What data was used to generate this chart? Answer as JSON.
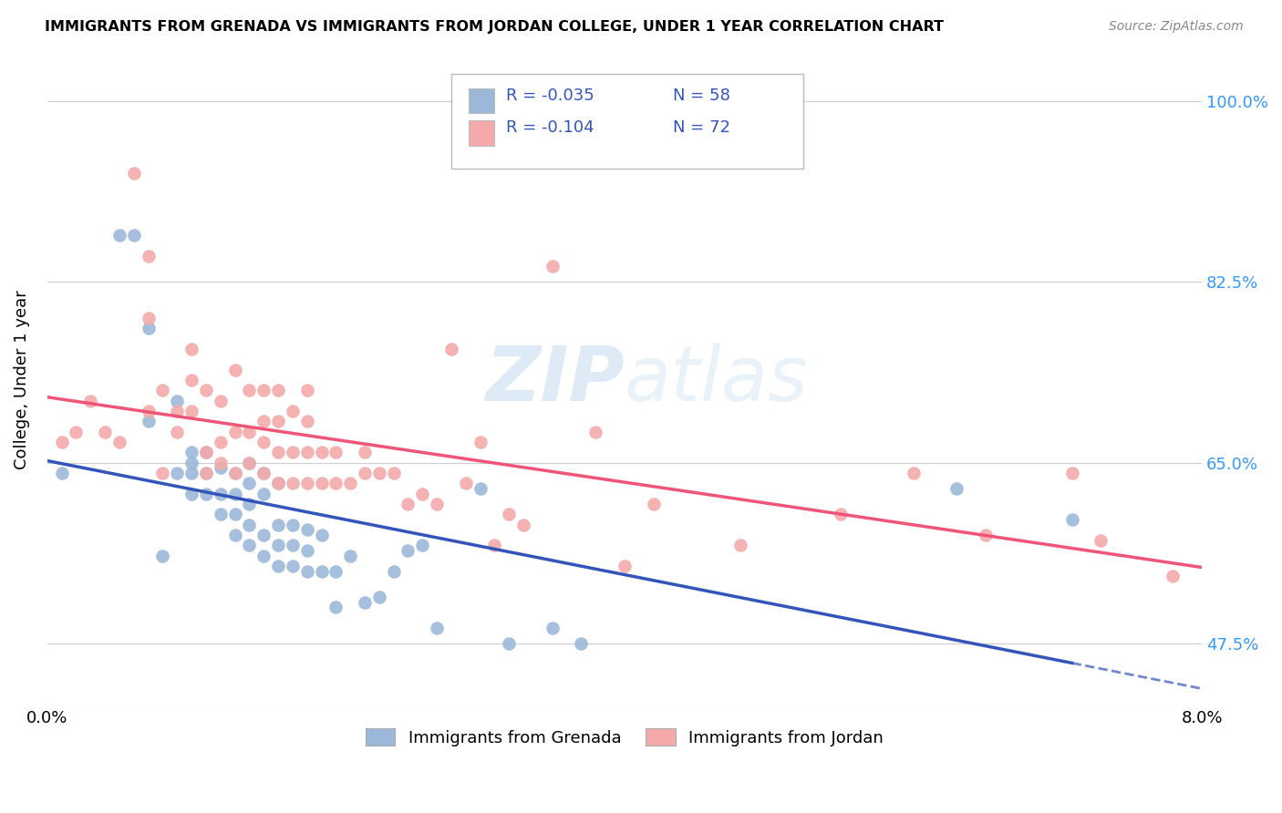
{
  "title": "IMMIGRANTS FROM GRENADA VS IMMIGRANTS FROM JORDAN COLLEGE, UNDER 1 YEAR CORRELATION CHART",
  "source": "Source: ZipAtlas.com",
  "ylabel": "College, Under 1 year",
  "yticks": [
    0.475,
    0.65,
    0.825,
    1.0
  ],
  "ytick_labels": [
    "47.5%",
    "65.0%",
    "82.5%",
    "100.0%"
  ],
  "xmin": 0.0,
  "xmax": 0.08,
  "ymin": 0.415,
  "ymax": 1.045,
  "legend_r1": "R = -0.035",
  "legend_n1": "N = 58",
  "legend_r2": "R = -0.104",
  "legend_n2": "N = 72",
  "color_grenada": "#9BB8D9",
  "color_jordan": "#F4AAAA",
  "color_trendline_grenada": "#3355BB",
  "color_trendline_jordan": "#EE5577",
  "watermark_color": "#C8DFF0",
  "grenada_x": [
    0.001,
    0.005,
    0.006,
    0.007,
    0.007,
    0.008,
    0.009,
    0.009,
    0.01,
    0.01,
    0.01,
    0.01,
    0.011,
    0.011,
    0.011,
    0.012,
    0.012,
    0.012,
    0.013,
    0.013,
    0.013,
    0.013,
    0.014,
    0.014,
    0.014,
    0.014,
    0.014,
    0.015,
    0.015,
    0.015,
    0.015,
    0.016,
    0.016,
    0.016,
    0.016,
    0.017,
    0.017,
    0.017,
    0.018,
    0.018,
    0.018,
    0.019,
    0.019,
    0.02,
    0.02,
    0.021,
    0.022,
    0.023,
    0.024,
    0.025,
    0.026,
    0.027,
    0.03,
    0.032,
    0.035,
    0.037,
    0.063,
    0.071
  ],
  "grenada_y": [
    0.64,
    0.87,
    0.87,
    0.78,
    0.69,
    0.56,
    0.64,
    0.71,
    0.62,
    0.64,
    0.65,
    0.66,
    0.62,
    0.64,
    0.66,
    0.6,
    0.62,
    0.645,
    0.58,
    0.6,
    0.62,
    0.64,
    0.57,
    0.59,
    0.61,
    0.63,
    0.65,
    0.56,
    0.58,
    0.62,
    0.64,
    0.55,
    0.57,
    0.59,
    0.63,
    0.55,
    0.57,
    0.59,
    0.545,
    0.565,
    0.585,
    0.545,
    0.58,
    0.51,
    0.545,
    0.56,
    0.515,
    0.52,
    0.545,
    0.565,
    0.57,
    0.49,
    0.625,
    0.475,
    0.49,
    0.475,
    0.625,
    0.595
  ],
  "jordan_x": [
    0.001,
    0.002,
    0.003,
    0.004,
    0.005,
    0.006,
    0.007,
    0.007,
    0.007,
    0.008,
    0.008,
    0.009,
    0.009,
    0.01,
    0.01,
    0.01,
    0.011,
    0.011,
    0.011,
    0.012,
    0.012,
    0.012,
    0.013,
    0.013,
    0.013,
    0.014,
    0.014,
    0.014,
    0.015,
    0.015,
    0.015,
    0.015,
    0.016,
    0.016,
    0.016,
    0.016,
    0.017,
    0.017,
    0.017,
    0.018,
    0.018,
    0.018,
    0.018,
    0.019,
    0.019,
    0.02,
    0.02,
    0.021,
    0.022,
    0.022,
    0.023,
    0.024,
    0.025,
    0.026,
    0.027,
    0.028,
    0.029,
    0.03,
    0.031,
    0.032,
    0.033,
    0.035,
    0.038,
    0.04,
    0.042,
    0.048,
    0.055,
    0.06,
    0.065,
    0.071,
    0.073,
    0.078
  ],
  "jordan_y": [
    0.67,
    0.68,
    0.71,
    0.68,
    0.67,
    0.93,
    0.7,
    0.79,
    0.85,
    0.64,
    0.72,
    0.68,
    0.7,
    0.7,
    0.73,
    0.76,
    0.64,
    0.66,
    0.72,
    0.65,
    0.67,
    0.71,
    0.64,
    0.68,
    0.74,
    0.65,
    0.68,
    0.72,
    0.64,
    0.67,
    0.69,
    0.72,
    0.63,
    0.66,
    0.69,
    0.72,
    0.63,
    0.66,
    0.7,
    0.63,
    0.66,
    0.69,
    0.72,
    0.63,
    0.66,
    0.63,
    0.66,
    0.63,
    0.64,
    0.66,
    0.64,
    0.64,
    0.61,
    0.62,
    0.61,
    0.76,
    0.63,
    0.67,
    0.57,
    0.6,
    0.59,
    0.84,
    0.68,
    0.55,
    0.61,
    0.57,
    0.6,
    0.64,
    0.58,
    0.64,
    0.575,
    0.54
  ]
}
